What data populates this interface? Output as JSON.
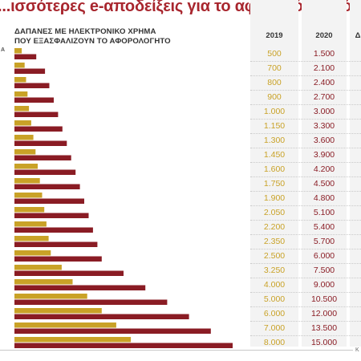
{
  "headline": "...ισσότερες e-αποδείξεις για το αφορολόγητο όριο",
  "edge_letter": "Α",
  "footer_mark": "Κ",
  "colors": {
    "y2019": "#c9a227",
    "y2020": "#8a1c24",
    "headline": "#a8262e"
  },
  "chart_data": {
    "type": "table",
    "title": "",
    "subtitle_lines": [
      "ΔΑΠΑΝΕΣ ΜΕ ΗΛΕΚΤΡΟΝΙΚΟ ΧΡΗΜΑ",
      "ΠΟΥ ΕΞΑΣΦΑΛΙΖΟΥΝ ΤΟ ΑΦΟΡΟΛΟΓΗΤΟ"
    ],
    "columns": [
      "2019",
      "2020",
      "Δ"
    ],
    "values_2019": [
      500,
      700,
      800,
      900,
      1000,
      1150,
      1300,
      1450,
      1600,
      1750,
      1900,
      2050,
      2200,
      2350,
      2500,
      3250,
      4000,
      5000,
      6000,
      7000,
      8000
    ],
    "values_2020": [
      1500,
      2100,
      2400,
      2700,
      3000,
      3300,
      3600,
      3900,
      4200,
      4500,
      4800,
      5100,
      5400,
      5700,
      6000,
      7500,
      9000,
      10500,
      12000,
      13500,
      15000
    ],
    "labels_2019": [
      "500",
      "700",
      "800",
      "900",
      "1.000",
      "1.150",
      "1.300",
      "1.450",
      "1.600",
      "1.750",
      "1.900",
      "2.050",
      "2.200",
      "2.350",
      "2.500",
      "3.250",
      "4.000",
      "5.000",
      "6.000",
      "7.000",
      "8.000"
    ],
    "labels_2020": [
      "1.500",
      "2.100",
      "2.400",
      "2.700",
      "3.000",
      "3.300",
      "3.600",
      "3.900",
      "4.200",
      "4.500",
      "4.800",
      "5.100",
      "5.400",
      "5.700",
      "6.000",
      "7.500",
      "9.000",
      "10.500",
      "12.000",
      "13.500",
      "15.000"
    ],
    "series": [
      {
        "name": "2019",
        "values": [
          500,
          700,
          800,
          900,
          1000,
          1150,
          1300,
          1450,
          1600,
          1750,
          1900,
          2050,
          2200,
          2350,
          2500,
          3250,
          4000,
          5000,
          6000,
          7000,
          8000
        ]
      },
      {
        "name": "2020",
        "values": [
          1500,
          2100,
          2400,
          2700,
          3000,
          3300,
          3600,
          3900,
          4200,
          4500,
          4800,
          5100,
          5400,
          5700,
          6000,
          7500,
          9000,
          10500,
          12000,
          13500,
          15000
        ]
      }
    ],
    "xlim": [
      0,
      15000
    ],
    "grid": false,
    "legend": "none"
  }
}
